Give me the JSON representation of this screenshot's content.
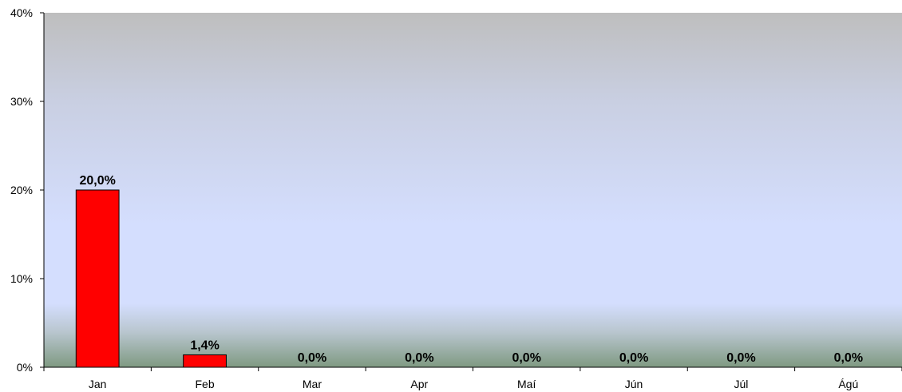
{
  "chart_data": {
    "type": "bar",
    "categories": [
      "Jan",
      "Feb",
      "Mar",
      "Apr",
      "Maí",
      "Jún",
      "Júl",
      "Ágú"
    ],
    "values": [
      20.0,
      1.4,
      0.0,
      0.0,
      0.0,
      0.0,
      0.0,
      0.0
    ],
    "data_labels": [
      "20,0%",
      "1,4%",
      "0,0%",
      "0,0%",
      "0,0%",
      "0,0%",
      "0,0%",
      "0,0%"
    ],
    "ylim": [
      0,
      40
    ],
    "yticks": [
      0,
      10,
      20,
      30,
      40
    ],
    "ytick_labels": [
      "0%",
      "10%",
      "20%",
      "30%",
      "40%"
    ],
    "title": "",
    "xlabel": "",
    "ylabel": "",
    "grid": false,
    "bar_color": "#ff0000",
    "background_gradient": [
      "#bebebe",
      "#d4defe",
      "#7f9a82"
    ]
  }
}
